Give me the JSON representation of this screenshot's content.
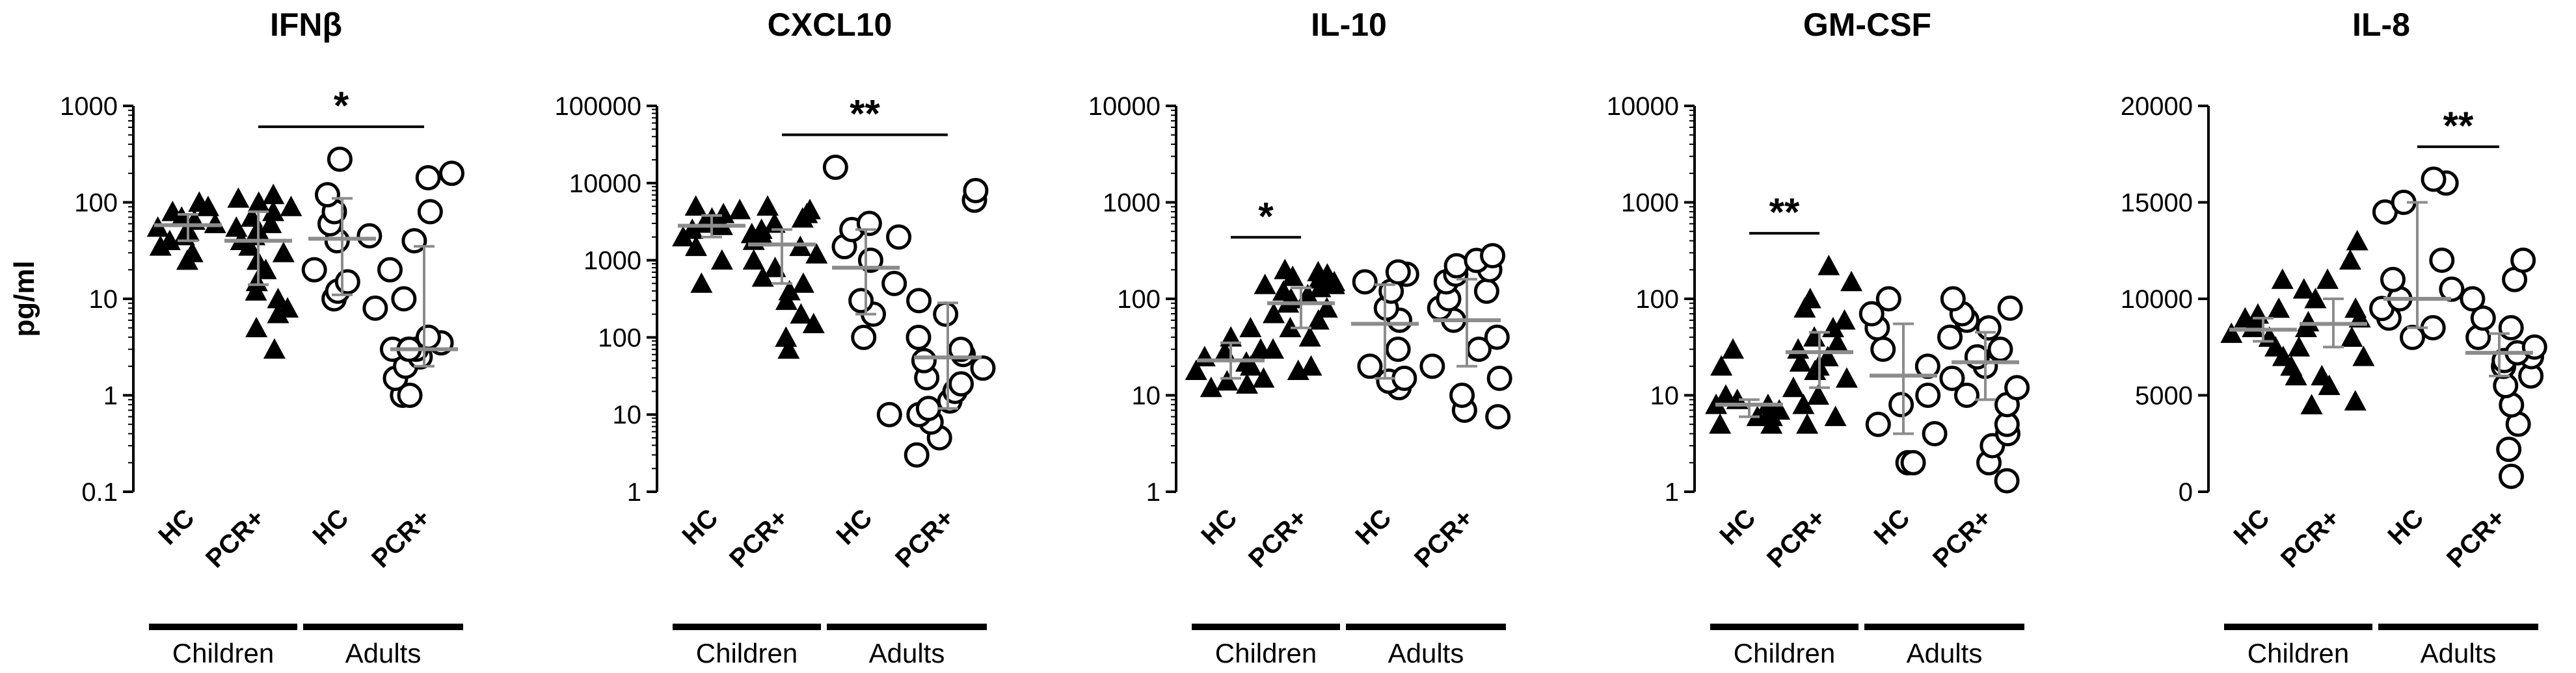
{
  "chart_data": [
    {
      "type": "scatter",
      "title": "IFNβ",
      "ylabel": "pg/ml",
      "scale": "log",
      "ylim": [
        0.1,
        1000
      ],
      "yticks": [
        "0.1",
        "1",
        "10",
        "100",
        "1000"
      ],
      "categories": [
        "HC",
        "PCR+",
        "HC",
        "PCR+"
      ],
      "groups": [
        {
          "label": "Children",
          "span": [
            0,
            1
          ]
        },
        {
          "label": "Adults",
          "span": [
            2,
            3
          ]
        }
      ],
      "marker": [
        "triangle",
        "triangle",
        "circle",
        "circle"
      ],
      "series": [
        {
          "name": "HC",
          "values": [
            25,
            30,
            35,
            40,
            45,
            50,
            55,
            60,
            65,
            70,
            80,
            90,
            100
          ],
          "median": 58,
          "q": [
            40,
            75
          ]
        },
        {
          "name": "PCR+",
          "values": [
            3,
            5,
            7,
            8,
            10,
            12,
            15,
            20,
            25,
            30,
            35,
            40,
            45,
            50,
            55,
            60,
            70,
            80,
            90,
            100,
            110,
            120
          ],
          "median": 40,
          "q": [
            14,
            80
          ]
        },
        {
          "name": "HC",
          "values": [
            8,
            10,
            12,
            15,
            20,
            40,
            45,
            60,
            80,
            120,
            280
          ],
          "median": 42,
          "q": [
            11,
            110
          ]
        },
        {
          "name": "PCR+",
          "values": [
            1,
            1,
            1.5,
            2,
            2.5,
            3,
            3,
            3,
            3,
            3.5,
            4,
            10,
            20,
            40,
            80,
            180,
            200
          ],
          "median": 3,
          "q": [
            2,
            35
          ]
        }
      ],
      "significance": [
        {
          "from": 1,
          "to": 3,
          "label": "*"
        }
      ]
    },
    {
      "type": "scatter",
      "title": "CXCL10",
      "scale": "log",
      "ylim": [
        1,
        100000
      ],
      "yticks": [
        "1",
        "10",
        "100",
        "1000",
        "10000",
        "100000"
      ],
      "categories": [
        "HC",
        "PCR+",
        "HC",
        "PCR+"
      ],
      "groups": [
        {
          "label": "Children",
          "span": [
            0,
            1
          ]
        },
        {
          "label": "Adults",
          "span": [
            2,
            3
          ]
        }
      ],
      "marker": [
        "triangle",
        "triangle",
        "circle",
        "circle"
      ],
      "series": [
        {
          "name": "HC",
          "values": [
            500,
            1000,
            1500,
            2000,
            2500,
            2800,
            3000,
            3200,
            3500,
            4000,
            4500,
            5000
          ],
          "median": 2800,
          "q": [
            2000,
            3800
          ]
        },
        {
          "name": "PCR+",
          "values": [
            70,
            100,
            150,
            200,
            300,
            400,
            500,
            600,
            800,
            1000,
            1200,
            1500,
            1800,
            2000,
            2200,
            2500,
            3000,
            3500,
            4000,
            4500,
            5000
          ],
          "median": 1600,
          "q": [
            500,
            2500
          ]
        },
        {
          "name": "HC",
          "values": [
            10,
            100,
            200,
            300,
            500,
            1000,
            1500,
            2000,
            2500,
            3000,
            16000
          ],
          "median": 800,
          "q": [
            200,
            2500
          ]
        },
        {
          "name": "PCR+",
          "values": [
            3,
            5,
            8,
            10,
            12,
            15,
            20,
            25,
            30,
            40,
            50,
            60,
            70,
            100,
            200,
            300,
            6000,
            8000
          ],
          "median": 55,
          "q": [
            12,
            280
          ]
        }
      ],
      "significance": [
        {
          "from": 1,
          "to": 3,
          "label": "**"
        }
      ]
    },
    {
      "type": "scatter",
      "title": "IL-10",
      "scale": "log",
      "ylim": [
        1,
        10000
      ],
      "yticks": [
        "1",
        "10",
        "100",
        "1000",
        "10000"
      ],
      "categories": [
        "HC",
        "PCR+",
        "HC",
        "PCR+"
      ],
      "groups": [
        {
          "label": "Children",
          "span": [
            0,
            1
          ]
        },
        {
          "label": "Adults",
          "span": [
            2,
            3
          ]
        }
      ],
      "marker": [
        "triangle",
        "triangle",
        "circle",
        "circle"
      ],
      "series": [
        {
          "name": "HC",
          "values": [
            12,
            13,
            14,
            15,
            18,
            20,
            22,
            25,
            28,
            30,
            40,
            50,
            140
          ],
          "median": 23,
          "q": [
            15,
            35
          ]
        },
        {
          "name": "PCR+",
          "values": [
            18,
            20,
            30,
            40,
            50,
            60,
            70,
            80,
            90,
            100,
            110,
            120,
            130,
            140,
            150,
            160,
            170,
            180,
            190,
            200
          ],
          "median": 90,
          "q": [
            50,
            130
          ]
        },
        {
          "name": "HC",
          "values": [
            12,
            14,
            15,
            20,
            30,
            60,
            80,
            120,
            150,
            180,
            190
          ],
          "median": 55,
          "q": [
            15,
            140
          ]
        },
        {
          "name": "PCR+",
          "values": [
            6,
            7,
            10,
            15,
            20,
            30,
            40,
            60,
            80,
            100,
            120,
            150,
            180,
            200,
            220,
            250,
            280
          ],
          "median": 60,
          "q": [
            20,
            160
          ]
        }
      ],
      "significance": [
        {
          "from": 0,
          "to": 1,
          "label": "*"
        }
      ]
    },
    {
      "type": "scatter",
      "title": "GM-CSF",
      "scale": "log",
      "ylim": [
        1,
        10000
      ],
      "yticks": [
        "1",
        "10",
        "100",
        "1000",
        "10000"
      ],
      "categories": [
        "HC",
        "PCR+",
        "HC",
        "PCR+"
      ],
      "groups": [
        {
          "label": "Children",
          "span": [
            0,
            1
          ]
        },
        {
          "label": "Adults",
          "span": [
            2,
            3
          ]
        }
      ],
      "marker": [
        "triangle",
        "triangle",
        "circle",
        "circle"
      ],
      "series": [
        {
          "name": "HC",
          "values": [
            5,
            5,
            6,
            6,
            7,
            7,
            8,
            8,
            9,
            10,
            20,
            30
          ],
          "median": 8,
          "q": [
            6,
            9
          ]
        },
        {
          "name": "PCR+",
          "values": [
            5,
            6,
            8,
            10,
            12,
            15,
            18,
            20,
            22,
            25,
            30,
            35,
            40,
            50,
            60,
            80,
            100,
            150,
            220
          ],
          "median": 28,
          "q": [
            12,
            45
          ]
        },
        {
          "name": "HC",
          "values": [
            2,
            2,
            4,
            5,
            8,
            10,
            20,
            30,
            50,
            70,
            100
          ],
          "median": 16,
          "q": [
            4,
            55
          ]
        },
        {
          "name": "PCR+",
          "values": [
            1.3,
            2,
            3,
            4,
            5,
            8,
            10,
            12,
            15,
            20,
            25,
            30,
            40,
            50,
            60,
            70,
            80,
            100
          ],
          "median": 22,
          "q": [
            9,
            45
          ]
        }
      ],
      "significance": [
        {
          "from": 0,
          "to": 1,
          "label": "**"
        }
      ]
    },
    {
      "type": "scatter",
      "title": "IL-8",
      "scale": "linear",
      "ylim": [
        0,
        20000
      ],
      "yticks": [
        "0",
        "5000",
        "10000",
        "15000",
        "20000"
      ],
      "categories": [
        "HC",
        "PCR+",
        "HC",
        "PCR+"
      ],
      "groups": [
        {
          "label": "Children",
          "span": [
            0,
            1
          ]
        },
        {
          "label": "Adults",
          "span": [
            2,
            3
          ]
        }
      ],
      "marker": [
        "triangle",
        "triangle",
        "circle",
        "circle"
      ],
      "series": [
        {
          "name": "HC",
          "values": [
            6000,
            6500,
            7000,
            7500,
            8000,
            8200,
            8500,
            8800,
            9000,
            9200,
            9500,
            11000
          ],
          "median": 8400,
          "q": [
            7800,
            9000
          ]
        },
        {
          "name": "PCR+",
          "values": [
            4500,
            4700,
            5500,
            6000,
            7000,
            7500,
            8000,
            8500,
            8800,
            9000,
            9500,
            10000,
            10500,
            11000,
            12000,
            13000
          ],
          "median": 8700,
          "q": [
            7500,
            10000
          ]
        },
        {
          "name": "HC",
          "values": [
            8000,
            8500,
            9000,
            9500,
            10000,
            10500,
            11000,
            12000,
            14500,
            15000,
            16000,
            16200
          ],
          "median": 10000,
          "q": [
            8500,
            15000
          ]
        },
        {
          "name": "PCR+",
          "values": [
            800,
            2200,
            3500,
            4500,
            5500,
            6000,
            6500,
            6800,
            7000,
            7200,
            7500,
            8000,
            8500,
            9000,
            10000,
            11000,
            12000
          ],
          "median": 7200,
          "q": [
            6000,
            8200
          ]
        }
      ],
      "significance": [
        {
          "from": 2,
          "to": 3,
          "label": "**"
        }
      ]
    }
  ]
}
